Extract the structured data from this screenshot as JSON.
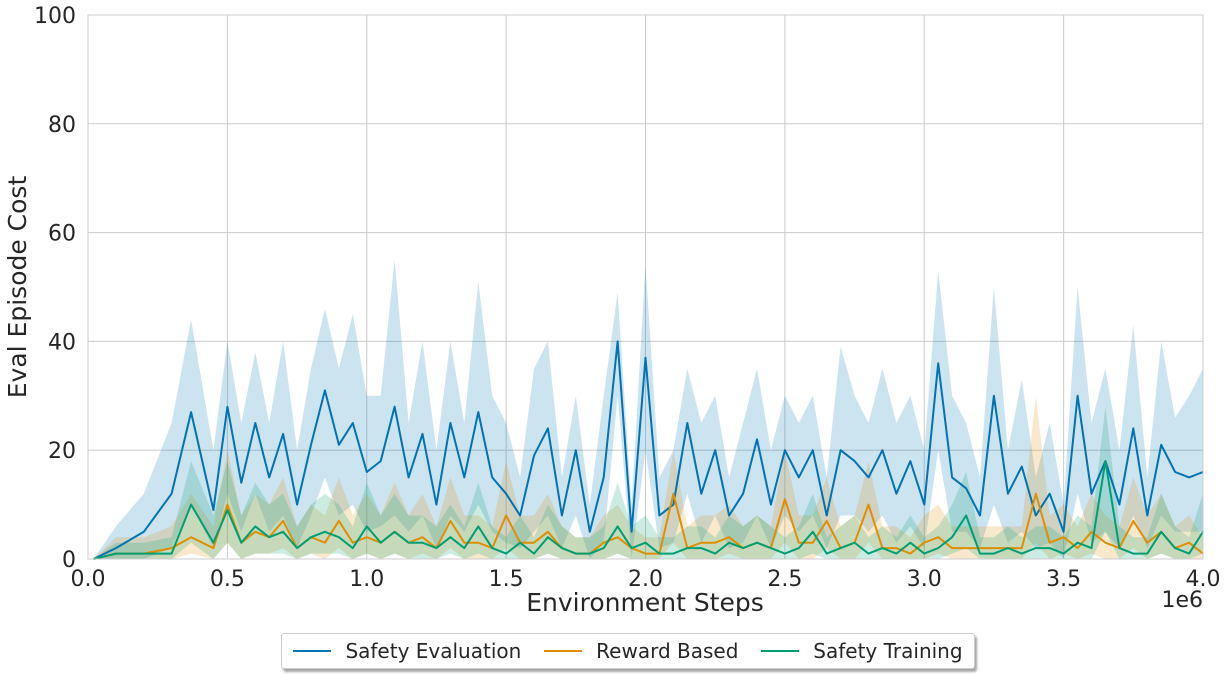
{
  "chart_data": {
    "type": "line",
    "xlabel": "Environment Steps",
    "ylabel": "Eval Episode Cost",
    "x_scale_label": "1e6",
    "xlim": [
      0,
      4.0
    ],
    "ylim": [
      0,
      100
    ],
    "x_ticks": [
      "0.0",
      "0.5",
      "1.0",
      "1.5",
      "2.0",
      "2.5",
      "3.0",
      "3.5",
      "4.0"
    ],
    "y_ticks": [
      "0",
      "20",
      "40",
      "60",
      "80",
      "100"
    ],
    "grid": true,
    "legend_position": "bottom-center",
    "x": [
      0.02,
      0.1,
      0.2,
      0.3,
      0.37,
      0.45,
      0.5,
      0.55,
      0.6,
      0.65,
      0.7,
      0.75,
      0.8,
      0.85,
      0.9,
      0.95,
      1.0,
      1.05,
      1.1,
      1.15,
      1.2,
      1.25,
      1.3,
      1.35,
      1.4,
      1.45,
      1.5,
      1.55,
      1.6,
      1.65,
      1.7,
      1.75,
      1.8,
      1.85,
      1.9,
      1.95,
      2.0,
      2.05,
      2.1,
      2.15,
      2.2,
      2.25,
      2.3,
      2.35,
      2.4,
      2.45,
      2.5,
      2.55,
      2.6,
      2.65,
      2.7,
      2.75,
      2.8,
      2.85,
      2.9,
      2.95,
      3.0,
      3.05,
      3.1,
      3.15,
      3.2,
      3.25,
      3.3,
      3.35,
      3.4,
      3.45,
      3.5,
      3.55,
      3.6,
      3.65,
      3.7,
      3.75,
      3.8,
      3.85,
      3.9,
      3.95,
      4.0
    ],
    "series": [
      {
        "name": "Safety Evaluation",
        "color": "#0173b2",
        "values": [
          0,
          2,
          5,
          12,
          27,
          9,
          28,
          14,
          25,
          15,
          23,
          10,
          21,
          31,
          21,
          25,
          16,
          18,
          28,
          15,
          23,
          10,
          25,
          15,
          27,
          15,
          12,
          8,
          19,
          24,
          8,
          20,
          5,
          15,
          40,
          5,
          37,
          8,
          10,
          25,
          12,
          20,
          8,
          12,
          22,
          10,
          20,
          15,
          20,
          8,
          20,
          18,
          15,
          20,
          12,
          18,
          10,
          36,
          15,
          13,
          8,
          30,
          12,
          17,
          8,
          12,
          5,
          30,
          12,
          18,
          10,
          24,
          8,
          21,
          16,
          15,
          16
        ],
        "band_upper": [
          0,
          6,
          12,
          25,
          44,
          20,
          40,
          25,
          38,
          25,
          40,
          20,
          35,
          46,
          35,
          45,
          30,
          30,
          55,
          25,
          40,
          20,
          40,
          25,
          51,
          30,
          25,
          15,
          35,
          40,
          15,
          30,
          10,
          30,
          49,
          10,
          54,
          15,
          20,
          35,
          25,
          30,
          15,
          25,
          35,
          20,
          30,
          25,
          30,
          15,
          39,
          30,
          25,
          35,
          25,
          30,
          20,
          53,
          30,
          25,
          15,
          50,
          20,
          33,
          15,
          25,
          10,
          50,
          25,
          35,
          20,
          43,
          15,
          40,
          26,
          30,
          35
        ],
        "band_lower": [
          0,
          0,
          0,
          2,
          10,
          2,
          12,
          5,
          12,
          5,
          8,
          2,
          8,
          15,
          8,
          10,
          5,
          6,
          8,
          5,
          8,
          2,
          8,
          5,
          10,
          5,
          3,
          2,
          5,
          8,
          2,
          8,
          0,
          3,
          30,
          0,
          20,
          2,
          3,
          12,
          3,
          8,
          2,
          3,
          8,
          2,
          8,
          5,
          8,
          2,
          8,
          8,
          5,
          8,
          3,
          6,
          2,
          20,
          5,
          5,
          2,
          10,
          3,
          5,
          2,
          3,
          0,
          12,
          3,
          5,
          2,
          8,
          2,
          8,
          5,
          5,
          5
        ]
      },
      {
        "name": "Reward Based",
        "color": "#de8f05",
        "values": [
          0,
          1,
          1,
          2,
          4,
          2,
          10,
          3,
          5,
          4,
          7,
          2,
          4,
          3,
          7,
          3,
          4,
          3,
          5,
          3,
          4,
          2,
          7,
          3,
          3,
          2,
          8,
          3,
          3,
          5,
          2,
          1,
          1,
          3,
          4,
          2,
          1,
          1,
          12,
          2,
          3,
          3,
          4,
          2,
          3,
          2,
          11,
          3,
          3,
          7,
          2,
          3,
          10,
          2,
          2,
          1,
          3,
          4,
          2,
          2,
          2,
          2,
          2,
          2,
          12,
          3,
          4,
          2,
          5,
          3,
          2,
          7,
          3,
          5,
          2,
          3,
          1
        ],
        "band_upper": [
          0,
          4,
          4,
          6,
          12,
          6,
          20,
          8,
          12,
          10,
          15,
          6,
          10,
          8,
          15,
          8,
          12,
          8,
          14,
          8,
          12,
          6,
          15,
          8,
          8,
          6,
          18,
          8,
          8,
          12,
          6,
          4,
          4,
          8,
          10,
          6,
          4,
          4,
          20,
          6,
          8,
          8,
          10,
          6,
          8,
          6,
          20,
          8,
          8,
          15,
          6,
          8,
          18,
          6,
          6,
          4,
          8,
          10,
          6,
          6,
          6,
          6,
          6,
          6,
          30,
          8,
          10,
          6,
          12,
          8,
          6,
          15,
          8,
          12,
          6,
          8,
          4
        ],
        "band_lower": [
          0,
          0,
          0,
          0,
          1,
          0,
          3,
          0,
          1,
          1,
          2,
          0,
          1,
          0,
          2,
          0,
          1,
          0,
          1,
          0,
          1,
          0,
          2,
          0,
          0,
          0,
          2,
          0,
          0,
          1,
          0,
          0,
          0,
          0,
          1,
          0,
          0,
          0,
          3,
          0,
          0,
          0,
          1,
          0,
          0,
          0,
          3,
          0,
          0,
          2,
          0,
          0,
          3,
          0,
          0,
          0,
          0,
          1,
          0,
          0,
          0,
          0,
          0,
          0,
          3,
          0,
          1,
          0,
          1,
          0,
          0,
          2,
          0,
          1,
          0,
          0,
          0
        ]
      },
      {
        "name": "Safety Training",
        "color": "#029e73",
        "values": [
          0,
          1,
          1,
          1,
          10,
          3,
          9,
          3,
          6,
          4,
          5,
          2,
          4,
          5,
          4,
          2,
          6,
          3,
          5,
          3,
          3,
          2,
          4,
          2,
          6,
          2,
          1,
          3,
          1,
          4,
          2,
          1,
          1,
          2,
          6,
          2,
          3,
          1,
          1,
          2,
          2,
          1,
          3,
          2,
          3,
          2,
          1,
          2,
          5,
          1,
          2,
          3,
          1,
          2,
          1,
          3,
          1,
          2,
          4,
          8,
          1,
          1,
          2,
          1,
          2,
          2,
          1,
          3,
          2,
          18,
          2,
          1,
          1,
          5,
          2,
          1,
          5
        ],
        "band_upper": [
          0,
          3,
          3,
          4,
          18,
          8,
          18,
          8,
          14,
          10,
          12,
          6,
          10,
          12,
          10,
          6,
          14,
          8,
          12,
          8,
          8,
          6,
          10,
          6,
          14,
          6,
          4,
          8,
          4,
          10,
          6,
          4,
          4,
          6,
          14,
          6,
          8,
          4,
          4,
          6,
          6,
          4,
          8,
          6,
          8,
          6,
          4,
          6,
          12,
          4,
          6,
          8,
          4,
          6,
          4,
          8,
          4,
          6,
          10,
          16,
          4,
          4,
          6,
          4,
          6,
          6,
          4,
          8,
          6,
          28,
          6,
          4,
          4,
          12,
          6,
          4,
          12
        ],
        "band_lower": [
          0,
          0,
          0,
          0,
          3,
          0,
          3,
          0,
          1,
          1,
          1,
          0,
          1,
          1,
          1,
          0,
          1,
          0,
          1,
          0,
          0,
          0,
          1,
          0,
          1,
          0,
          0,
          0,
          0,
          1,
          0,
          0,
          0,
          0,
          1,
          0,
          0,
          0,
          0,
          0,
          0,
          0,
          0,
          0,
          0,
          0,
          0,
          0,
          1,
          0,
          0,
          0,
          0,
          0,
          0,
          0,
          0,
          0,
          1,
          2,
          0,
          0,
          0,
          0,
          0,
          0,
          0,
          0,
          0,
          5,
          0,
          0,
          0,
          1,
          0,
          0,
          1
        ]
      }
    ]
  }
}
